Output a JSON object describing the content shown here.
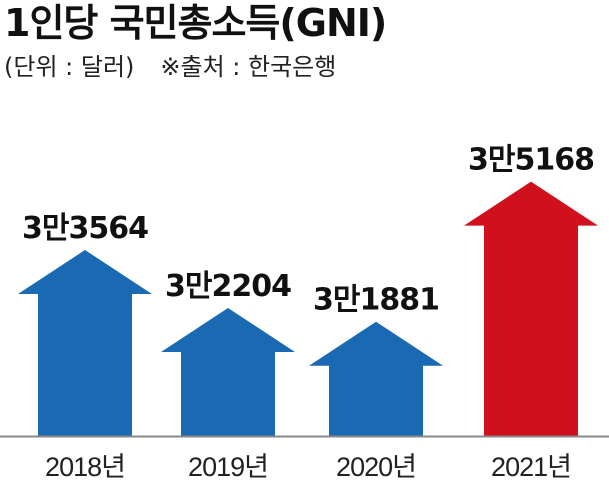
{
  "header": {
    "title": "1인당 국민총소득(GNI)",
    "unit": "(단위 : 달러)",
    "source": "※출처 : 한국은행"
  },
  "colors": {
    "normal_bar": "#1a6ab3",
    "highlight_bar": "#d0101c",
    "baseline": "#888888"
  },
  "chart_data": {
    "type": "bar",
    "categories": [
      "2018년",
      "2019년",
      "2020년",
      "2021년"
    ],
    "values": [
      33564,
      32204,
      31881,
      35168
    ],
    "value_labels": [
      "3만3564",
      "3만2204",
      "3만1881",
      "3만5168"
    ],
    "highlight_index": 3,
    "bar_style": "upward-arrow",
    "ylim": [
      29200,
      35300
    ],
    "grid": false,
    "legend": "none"
  }
}
